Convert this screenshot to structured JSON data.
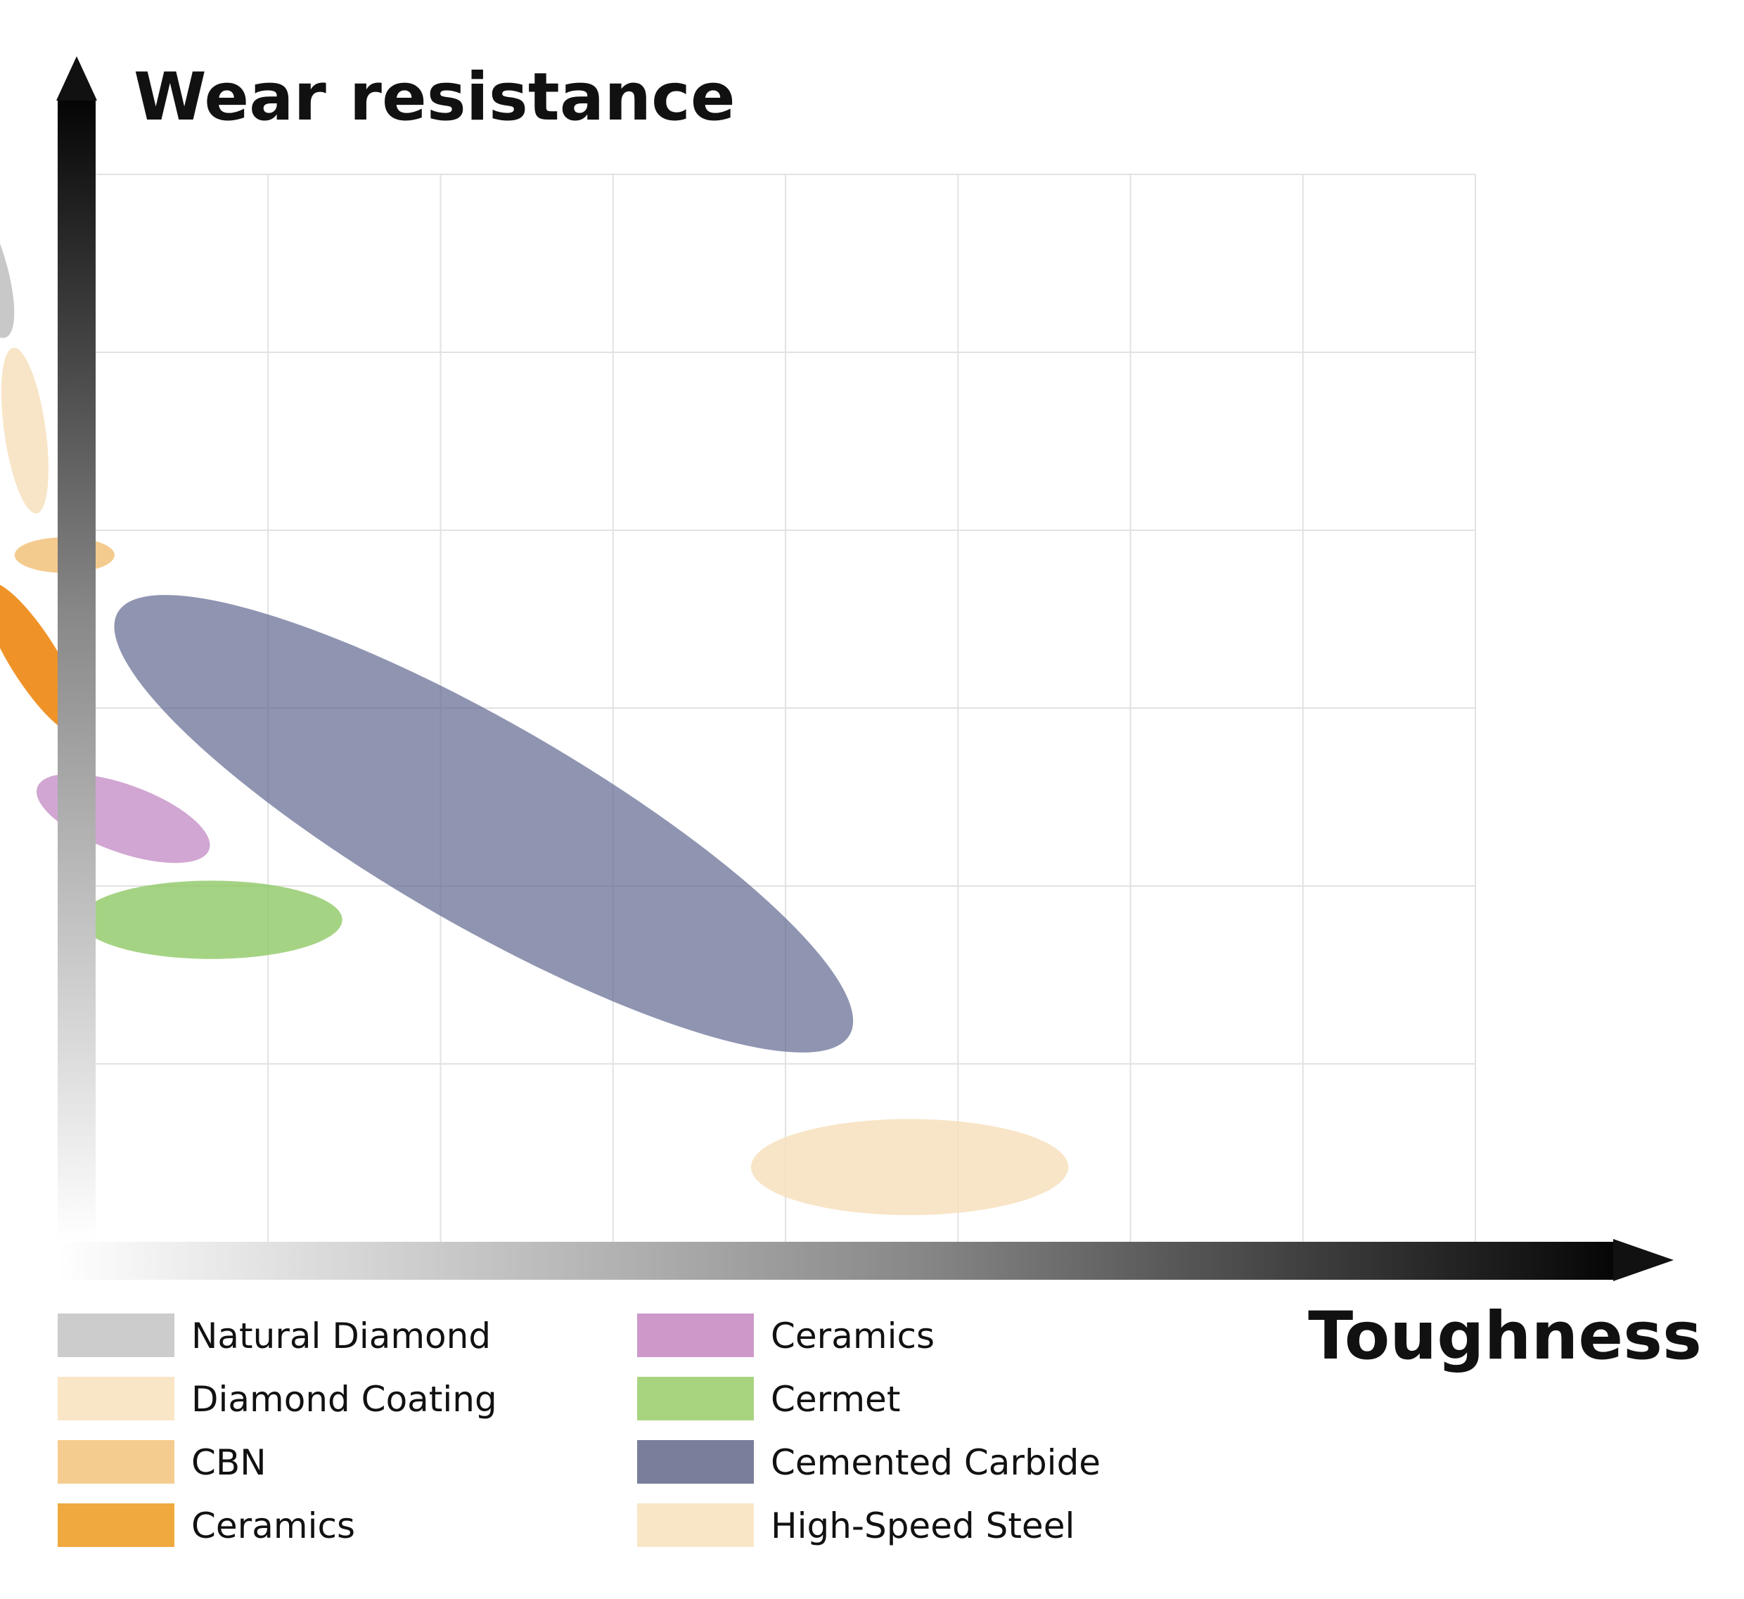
{
  "chart_data": {
    "type": "scatter",
    "ylabel": "Wear resistance",
    "xlabel": "Toughness",
    "grid": true,
    "xlim": [
      0,
      8
    ],
    "ylim": [
      0,
      6
    ],
    "x_tick_count": 8,
    "y_tick_count": 6,
    "legend_placement": "bottom-left, two columns",
    "series": [
      {
        "name": "Natural Diamond",
        "color": "#b3b3b3",
        "opacity": 0.72,
        "cx": -0.67,
        "cy": 5.52,
        "rx": 0.14,
        "ry": 0.46,
        "angle": -18
      },
      {
        "name": "Diamond Coating",
        "color": "#f7e1bd",
        "opacity": 0.85,
        "cx": -0.41,
        "cy": 4.56,
        "rx": 0.12,
        "ry": 0.47,
        "angle": -8
      },
      {
        "name": "CBN",
        "color": "#f2c27a",
        "opacity": 0.85,
        "cx": -0.18,
        "cy": 3.86,
        "rx": 0.29,
        "ry": 0.1,
        "angle": 0
      },
      {
        "name": "Ceramics",
        "color": "#ee8a17",
        "opacity": 0.92,
        "cx": -0.36,
        "cy": 3.28,
        "rx": 0.14,
        "ry": 0.5,
        "angle": -32
      },
      {
        "name": "Cemented Carbide",
        "color": "#5f6790",
        "opacity": 0.7,
        "cx": 2.25,
        "cy": 2.35,
        "rx": 2.45,
        "ry": 0.57,
        "angle": 30
      },
      {
        "name": "Ceramics",
        "color": "#b36ab4",
        "opacity": 0.6,
        "cx": 0.16,
        "cy": 2.38,
        "rx": 0.53,
        "ry": 0.19,
        "angle": 20
      },
      {
        "name": "Cermet",
        "color": "#8cc761",
        "opacity": 0.78,
        "cx": 0.67,
        "cy": 1.81,
        "rx": 0.76,
        "ry": 0.22,
        "angle": 0
      },
      {
        "name": "High-Speed Steel",
        "color": "#f7e1bd",
        "opacity": 0.85,
        "cx": 4.72,
        "cy": 0.42,
        "rx": 0.92,
        "ry": 0.27,
        "angle": 0
      }
    ],
    "legend": [
      {
        "name": "Natural Diamond",
        "color": "#cccccc"
      },
      {
        "name": "Diamond Coating",
        "color": "#f9e6c7"
      },
      {
        "name": "CBN",
        "color": "#f5cc8f"
      },
      {
        "name": "Ceramics",
        "color": "#f0a93f"
      },
      {
        "name": "Ceramics",
        "color": "#cc99c9"
      },
      {
        "name": "Cermet",
        "color": "#a8d480"
      },
      {
        "name": "Cemented Carbide",
        "color": "#7a7e9a"
      },
      {
        "name": "High-Speed Steel",
        "color": "#f9e6c7"
      }
    ]
  }
}
